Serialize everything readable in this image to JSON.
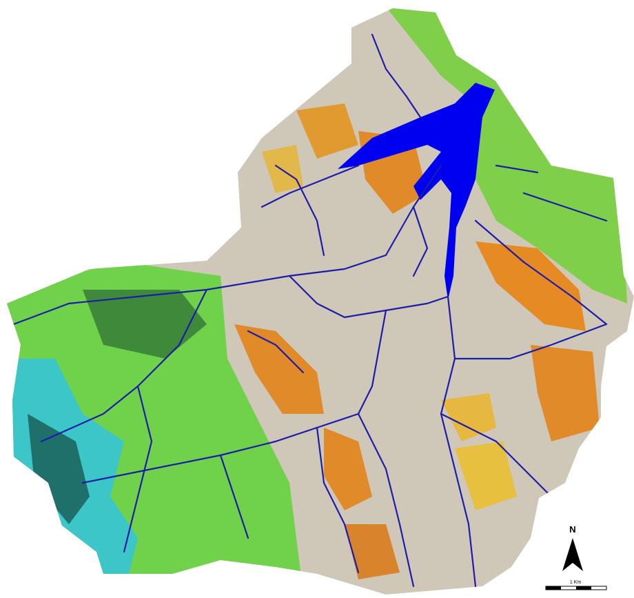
{
  "north_arrow": {
    "label": "N"
  },
  "scale_bar": {
    "label": "1 Km"
  }
}
